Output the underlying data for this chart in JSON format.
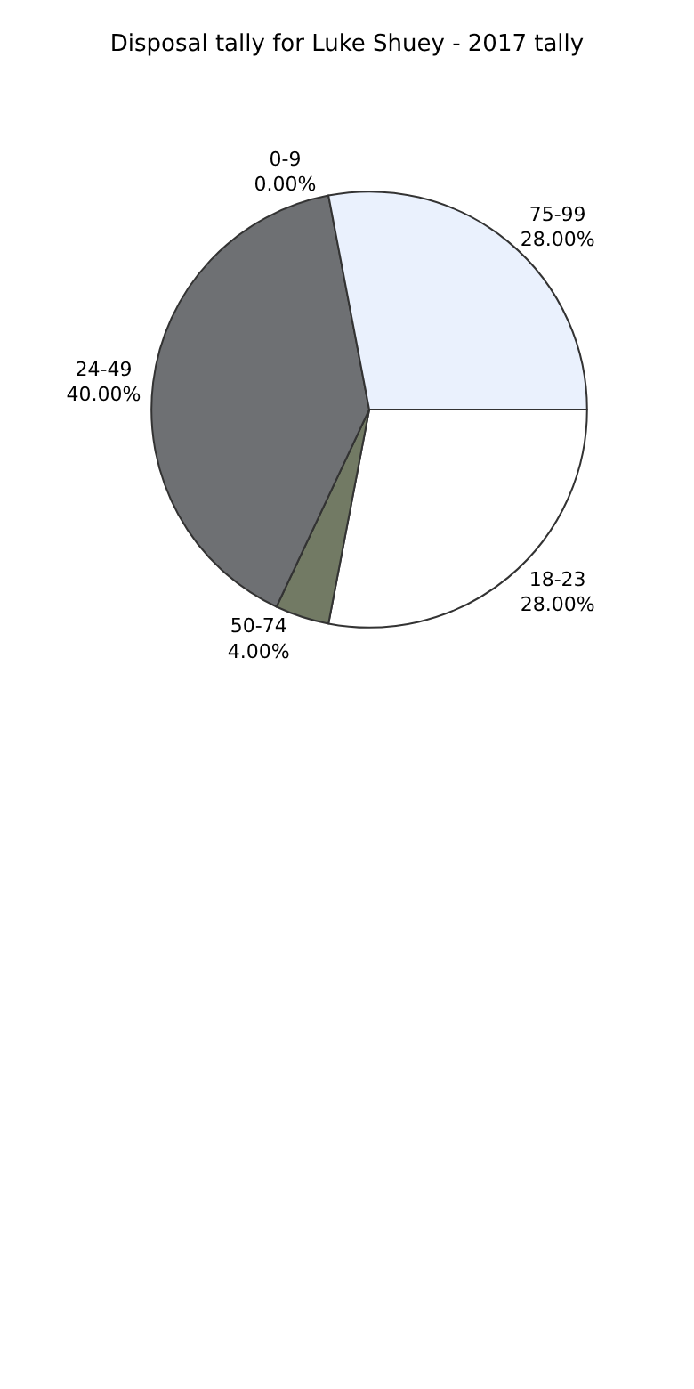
{
  "chart_data": {
    "type": "pie",
    "title": "Disposal tally for Luke Shuey - 2017 tally",
    "categories": [
      "18-23",
      "50-74",
      "24-49",
      "0-9",
      "75-99"
    ],
    "values": [
      28,
      4,
      40,
      0,
      28
    ],
    "value_labels": [
      "28.00%",
      "4.00%",
      "40.00%",
      "0.00%",
      "28.00%"
    ],
    "colors": [
      "#ffffff",
      "#727a64",
      "#6e7073",
      "#6b7079",
      "#eaf1fd"
    ],
    "legend": false
  }
}
